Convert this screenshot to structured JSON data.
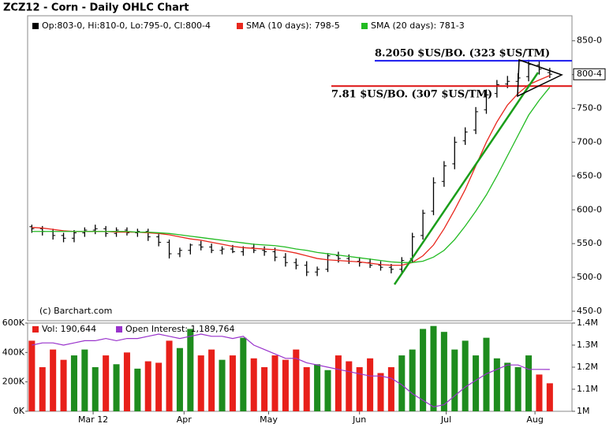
{
  "title": "ZCZ12 - Corn - Daily OHLC Chart",
  "chart_data": [
    {
      "type": "ohlc",
      "categories": [
        null,
        null,
        null,
        null,
        null,
        null,
        null,
        null,
        null,
        null,
        null,
        null,
        null,
        null,
        null,
        null,
        null,
        null,
        null,
        null,
        null,
        null,
        null,
        null,
        null,
        null,
        null,
        null,
        null,
        null,
        null,
        null,
        null,
        null,
        null,
        null,
        null,
        null,
        null,
        null,
        null,
        null,
        null,
        null,
        null,
        null,
        null,
        null,
        null,
        null
      ],
      "xlim": [
        -0.4,
        51.1
      ],
      "ylim": [
        436,
        887
      ],
      "yticks": [
        {
          "value": 450,
          "label": "450-0"
        },
        {
          "value": 500,
          "label": "500-0"
        },
        {
          "value": 550,
          "label": "550-0"
        },
        {
          "value": 600,
          "label": "600-0"
        },
        {
          "value": 650,
          "label": "650-0"
        },
        {
          "value": 700,
          "label": "700-0"
        },
        {
          "value": 750,
          "label": "750-0"
        },
        {
          "value": 800,
          "label": "800-0"
        },
        {
          "value": 850,
          "label": "850-0"
        }
      ],
      "ohlc": {
        "name": "Op:803-0, Hi:810-0, Lo:795-0, Cl:800-4",
        "color": "#000000",
        "open": [
          575,
          572,
          568,
          562,
          558,
          566,
          570,
          572,
          565,
          570,
          566,
          568,
          560,
          552,
          535,
          540,
          548,
          545,
          540,
          542,
          538,
          544,
          540,
          538,
          530,
          522,
          518,
          508,
          512,
          532,
          528,
          524,
          522,
          518,
          515,
          512,
          528,
          562,
          598,
          642,
          668,
          702,
          718,
          748,
          772,
          786,
          790,
          797,
          814,
          803
        ],
        "high": [
          578,
          576,
          572,
          566,
          570,
          574,
          578,
          576,
          574,
          574,
          572,
          572,
          564,
          556,
          544,
          550,
          554,
          550,
          546,
          548,
          546,
          550,
          546,
          544,
          536,
          528,
          524,
          516,
          536,
          538,
          534,
          530,
          528,
          524,
          520,
          530,
          566,
          600,
          648,
          672,
          708,
          722,
          752,
          778,
          792,
          798,
          802,
          822,
          820,
          810
        ],
        "low": [
          566,
          562,
          556,
          552,
          552,
          560,
          564,
          560,
          560,
          562,
          560,
          554,
          546,
          528,
          530,
          534,
          540,
          536,
          534,
          536,
          532,
          536,
          532,
          524,
          516,
          512,
          502,
          502,
          508,
          522,
          520,
          516,
          514,
          510,
          506,
          506,
          522,
          556,
          592,
          634,
          660,
          696,
          712,
          742,
          766,
          780,
          784,
          790,
          800,
          795
        ],
        "close": [
          572,
          568,
          562,
          558,
          566,
          570,
          572,
          565,
          570,
          566,
          568,
          560,
          552,
          535,
          540,
          548,
          545,
          540,
          542,
          538,
          544,
          540,
          538,
          530,
          522,
          518,
          508,
          512,
          532,
          528,
          524,
          522,
          518,
          515,
          512,
          525,
          560,
          595,
          640,
          665,
          700,
          715,
          745,
          770,
          785,
          790,
          795,
          815,
          808,
          800.5
        ]
      },
      "series": [
        {
          "name": "SMA (10 days): 798-5",
          "color": "#e8281e",
          "values": [
            574,
            573,
            571,
            569,
            568,
            568,
            568,
            568,
            567,
            567,
            567,
            566,
            565,
            563,
            560,
            557,
            555,
            552,
            549,
            546,
            544,
            543,
            542,
            541,
            539,
            536,
            532,
            528,
            526,
            525,
            524,
            523,
            521,
            519,
            518,
            518,
            522,
            532,
            548,
            572,
            600,
            630,
            665,
            700,
            730,
            755,
            772,
            785,
            792,
            798.6
          ]
        },
        {
          "name": "SMA (20 days): 781-3",
          "color": "#22bb22",
          "values": [
            568,
            568,
            568,
            568,
            568,
            568,
            568,
            568,
            568,
            568,
            567,
            567,
            566,
            565,
            563,
            561,
            559,
            557,
            555,
            553,
            551,
            549,
            548,
            547,
            545,
            542,
            540,
            537,
            535,
            533,
            531,
            529,
            527,
            525,
            523,
            522,
            522,
            524,
            530,
            540,
            556,
            576,
            598,
            622,
            650,
            680,
            710,
            740,
            762,
            781.3
          ]
        }
      ],
      "last_label": {
        "value": 800.5,
        "label": "800-4"
      },
      "annotations": [
        {
          "text": "8.2050 $US/BO. (323 $US/TM)",
          "value": 820.5,
          "color": "#1a1aee"
        },
        {
          "text": "7.81 $US/BO. (307 $US/TM)",
          "value": 783,
          "color": "#dd1111"
        }
      ],
      "credit": "(c) Barchart.com"
    },
    {
      "type": "volume",
      "xlim": [
        -0.4,
        51.1
      ],
      "xticks": [
        {
          "value": 5.8,
          "label": "Mar 12"
        },
        {
          "value": 14.4,
          "label": "Apr"
        },
        {
          "value": 22.4,
          "label": "May"
        },
        {
          "value": 31,
          "label": "Jun"
        },
        {
          "value": 39.2,
          "label": "Jul"
        },
        {
          "value": 47.6,
          "label": "Aug"
        }
      ],
      "ylim": [
        0,
        600
      ],
      "yticks": [
        {
          "value": 0,
          "label": "0K"
        },
        {
          "value": 200,
          "label": "200K"
        },
        {
          "value": 400,
          "label": "400K"
        },
        {
          "value": 600,
          "label": "600K"
        }
      ],
      "y2lim": [
        1.0,
        1.4
      ],
      "y2ticks": [
        {
          "value": 1.0,
          "label": "1M"
        },
        {
          "value": 1.1,
          "label": "1.1M"
        },
        {
          "value": 1.2,
          "label": "1.2M"
        },
        {
          "value": 1.3,
          "label": "1.3M"
        },
        {
          "value": 1.4,
          "label": "1.4M"
        }
      ],
      "up_color": "#1e8c1e",
      "down_color": "#e8201a",
      "series": [
        {
          "name": "Vol: 190,644",
          "color": "#e8201a",
          "values": [
            480,
            300,
            420,
            350,
            380,
            420,
            300,
            380,
            320,
            400,
            290,
            340,
            330,
            480,
            430,
            560,
            380,
            420,
            350,
            380,
            500,
            360,
            300,
            380,
            350,
            420,
            300,
            320,
            280,
            380,
            340,
            300,
            360,
            260,
            300,
            380,
            420,
            560,
            580,
            540,
            420,
            480,
            380,
            500,
            360,
            330,
            300,
            380,
            250,
            190.644
          ]
        },
        {
          "name": "Open Interest: 1,189,764",
          "color": "#9933cc",
          "axis": "y2",
          "values": [
            1.3,
            1.31,
            1.31,
            1.3,
            1.31,
            1.32,
            1.32,
            1.33,
            1.32,
            1.33,
            1.33,
            1.34,
            1.35,
            1.34,
            1.33,
            1.34,
            1.35,
            1.34,
            1.34,
            1.33,
            1.34,
            1.3,
            1.28,
            1.26,
            1.24,
            1.24,
            1.22,
            1.21,
            1.2,
            1.19,
            1.18,
            1.17,
            1.16,
            1.16,
            1.15,
            1.12,
            1.08,
            1.05,
            1.02,
            1.03,
            1.07,
            1.11,
            1.14,
            1.17,
            1.19,
            1.21,
            1.21,
            1.19,
            1.19,
            1.189764
          ]
        }
      ]
    }
  ]
}
